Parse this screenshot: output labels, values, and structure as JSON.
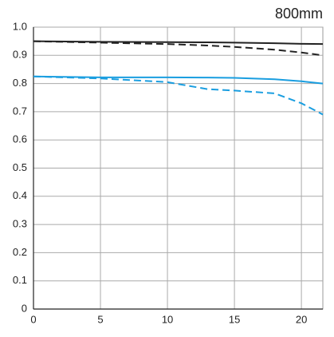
{
  "chart_data": {
    "type": "line",
    "title": "800mm",
    "x": [
      0,
      5,
      10,
      13,
      15,
      18,
      20,
      21.6
    ],
    "series": [
      {
        "color": "#222222",
        "style": "solid",
        "values": [
          0.95,
          0.948,
          0.947,
          0.946,
          0.945,
          0.943,
          0.941,
          0.94
        ]
      },
      {
        "color": "#222222",
        "style": "dashed",
        "values": [
          0.95,
          0.945,
          0.94,
          0.935,
          0.93,
          0.92,
          0.91,
          0.9
        ]
      },
      {
        "color": "#1a9ee0",
        "style": "solid",
        "values": [
          0.825,
          0.822,
          0.822,
          0.821,
          0.82,
          0.815,
          0.808,
          0.8
        ]
      },
      {
        "color": "#1a9ee0",
        "style": "dashed",
        "values": [
          0.825,
          0.818,
          0.805,
          0.78,
          0.775,
          0.765,
          0.73,
          0.69
        ]
      }
    ],
    "xlim": [
      0,
      21.6
    ],
    "ylim": [
      0,
      1
    ],
    "xticks": [
      0,
      5,
      10,
      15,
      20
    ],
    "yticks": [
      0,
      0.1,
      0.2,
      0.3,
      0.4,
      0.5,
      0.6,
      0.7,
      0.8,
      0.9,
      {
        "value": 1,
        "label": "1.0"
      }
    ],
    "grid": true
  }
}
